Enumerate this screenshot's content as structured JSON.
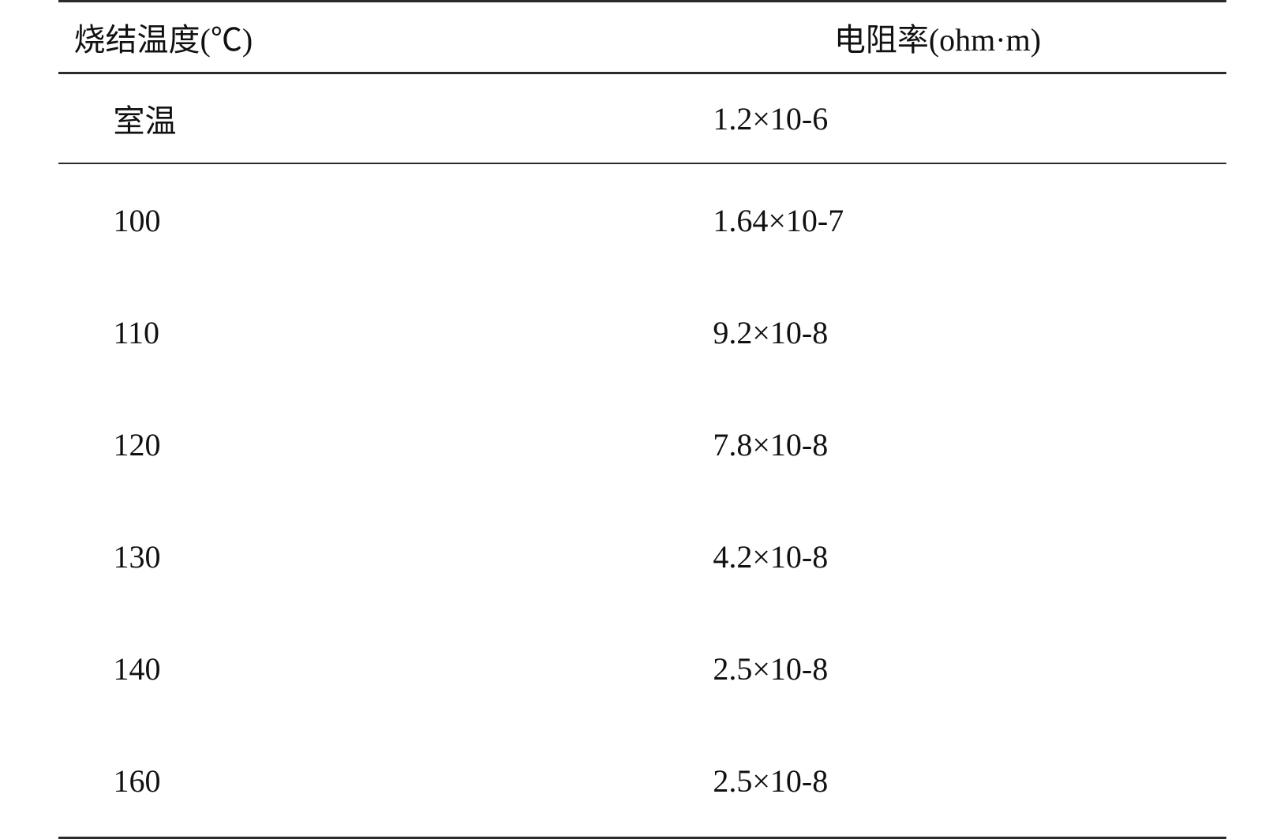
{
  "table": {
    "type": "table",
    "border_color": "#2b2b2b",
    "background_color": "#ffffff",
    "text_color": "#111111",
    "font_size_pt": 30,
    "columns": [
      {
        "label": "烧结温度(℃)",
        "align": "left"
      },
      {
        "label": "电阻率(ohm·m)",
        "align": "left"
      }
    ],
    "rows": [
      {
        "temp": "室温",
        "resistivity": "1.2×10-6"
      },
      {
        "temp": "100",
        "resistivity": "1.64×10-7"
      },
      {
        "temp": "110",
        "resistivity": "9.2×10-8"
      },
      {
        "temp": "120",
        "resistivity": "7.8×10-8"
      },
      {
        "temp": "130",
        "resistivity": "4.2×10-8"
      },
      {
        "temp": "140",
        "resistivity": "2.5×10-8"
      },
      {
        "temp": "160",
        "resistivity": "2.5×10-8"
      }
    ]
  }
}
